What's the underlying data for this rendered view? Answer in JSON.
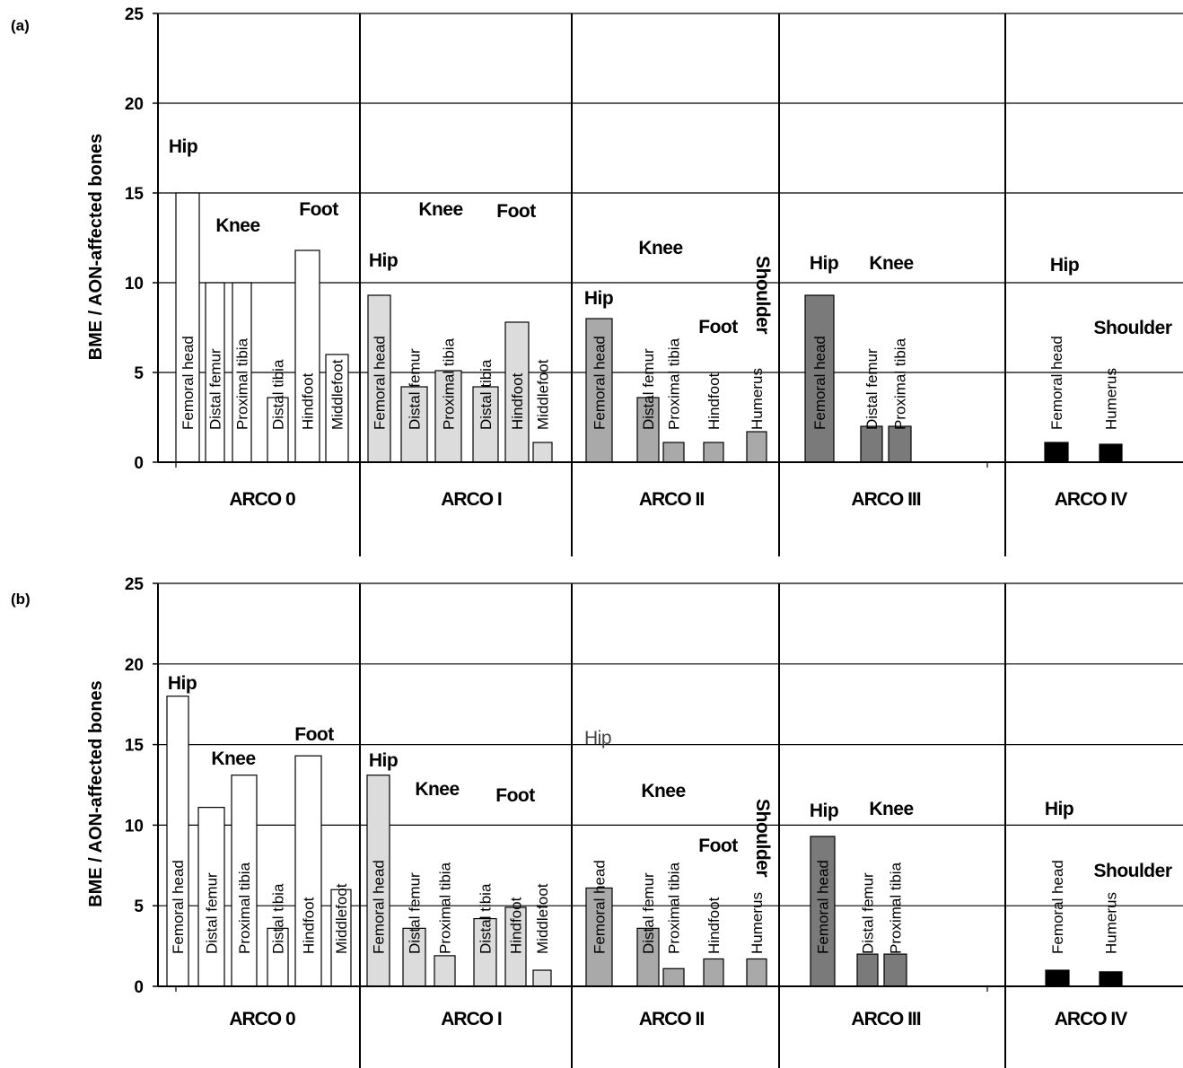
{
  "chart_data": [
    {
      "type": "bar",
      "panel_label": "(a)",
      "ylabel": "BME / AON-affected bones",
      "ylim": [
        0,
        25
      ],
      "yticks": [
        "0",
        "5",
        "10",
        "15",
        "20",
        "25"
      ],
      "grid": true,
      "categories": [
        "ARCO 0",
        "ARCO I",
        "ARCO II",
        "ARCO III",
        "ARCO IV"
      ],
      "groups": [
        {
          "stage": "ARCO 0",
          "label": "Hip"
        },
        {
          "stage": "ARCO 0",
          "label": "Knee"
        },
        {
          "stage": "ARCO 0",
          "label": "Foot"
        },
        {
          "stage": "ARCO I",
          "label": "Hip"
        },
        {
          "stage": "ARCO I",
          "label": "Knee"
        },
        {
          "stage": "ARCO I",
          "label": "Foot"
        },
        {
          "stage": "ARCO II",
          "label": "Hip"
        },
        {
          "stage": "ARCO II",
          "label": "Knee"
        },
        {
          "stage": "ARCO II",
          "label": "Foot"
        },
        {
          "stage": "ARCO II",
          "label": "Shoulder",
          "vertical": true
        },
        {
          "stage": "ARCO III",
          "label": "Hip"
        },
        {
          "stage": "ARCO III",
          "label": "Knee"
        },
        {
          "stage": "ARCO IV",
          "label": "Hip"
        },
        {
          "stage": "ARCO IV",
          "label": "Shoulder"
        }
      ],
      "bars": [
        {
          "stage": "ARCO 0",
          "label": "Femoral head",
          "value": 15
        },
        {
          "stage": "ARCO 0",
          "label": "Distal femur",
          "value": 10
        },
        {
          "stage": "ARCO 0",
          "label": "Proximal tibia",
          "value": 10
        },
        {
          "stage": "ARCO 0",
          "label": "Distal tibia",
          "value": 3.6
        },
        {
          "stage": "ARCO 0",
          "label": "Hindfoot",
          "value": 11.8
        },
        {
          "stage": "ARCO 0",
          "label": "Middlefoot",
          "value": 6
        },
        {
          "stage": "ARCO I",
          "label": "Femoral head",
          "value": 9.3
        },
        {
          "stage": "ARCO I",
          "label": "Distal femur",
          "value": 4.2
        },
        {
          "stage": "ARCO I",
          "label": "Proximal tibia",
          "value": 5.1
        },
        {
          "stage": "ARCO I",
          "label": "Distal tibia",
          "value": 4.2
        },
        {
          "stage": "ARCO I",
          "label": "Hindfoot",
          "value": 7.8
        },
        {
          "stage": "ARCO I",
          "label": "Middlefoot",
          "value": 1.1
        },
        {
          "stage": "ARCO II",
          "label": "Femoral head",
          "value": 8
        },
        {
          "stage": "ARCO II",
          "label": "Distal femur",
          "value": 3.6
        },
        {
          "stage": "ARCO II",
          "label": "Proximal tibia",
          "value": 1.1
        },
        {
          "stage": "ARCO II",
          "label": "Hindfoot",
          "value": 1.1
        },
        {
          "stage": "ARCO II",
          "label": "Humerus",
          "value": 1.7
        },
        {
          "stage": "ARCO III",
          "label": "Femoral head",
          "value": 9.3
        },
        {
          "stage": "ARCO III",
          "label": "Distal femur",
          "value": 2
        },
        {
          "stage": "ARCO III",
          "label": "Proximal tibia",
          "value": 2
        },
        {
          "stage": "ARCO IV",
          "label": "Femoral head",
          "value": 1.1
        },
        {
          "stage": "ARCO IV",
          "label": "Humerus",
          "value": 1
        }
      ],
      "colors": {
        "ARCO 0": "#ffffff",
        "ARCO I": "#dcdcdc",
        "ARCO II": "#a9a9a9",
        "ARCO III": "#7a7a7a",
        "ARCO IV": "#000000"
      }
    },
    {
      "type": "bar",
      "panel_label": "(b)",
      "ylabel": "BME / AON-affected bones",
      "ylim": [
        0,
        25
      ],
      "yticks": [
        "0",
        "5",
        "10",
        "15",
        "20",
        "25"
      ],
      "grid": true,
      "categories": [
        "ARCO 0",
        "ARCO I",
        "ARCO II",
        "ARCO III",
        "ARCO IV"
      ],
      "groups": [
        {
          "stage": "ARCO 0",
          "label": "Hip"
        },
        {
          "stage": "ARCO 0",
          "label": "Knee"
        },
        {
          "stage": "ARCO 0",
          "label": "Foot"
        },
        {
          "stage": "ARCO I",
          "label": "Hip"
        },
        {
          "stage": "ARCO I",
          "label": "Knee"
        },
        {
          "stage": "ARCO I",
          "label": "Foot"
        },
        {
          "stage": "ARCO II",
          "label": "Hip",
          "plain": true
        },
        {
          "stage": "ARCO II",
          "label": "Knee"
        },
        {
          "stage": "ARCO II",
          "label": "Foot"
        },
        {
          "stage": "ARCO II",
          "label": "Shoulder",
          "vertical": true
        },
        {
          "stage": "ARCO III",
          "label": "Hip"
        },
        {
          "stage": "ARCO III",
          "label": "Knee"
        },
        {
          "stage": "ARCO IV",
          "label": "Hip"
        },
        {
          "stage": "ARCO IV",
          "label": "Shoulder"
        }
      ],
      "bars": [
        {
          "stage": "ARCO 0",
          "label": "Femoral head",
          "value": 18
        },
        {
          "stage": "ARCO 0",
          "label": "Distal femur",
          "value": 11.1
        },
        {
          "stage": "ARCO 0",
          "label": "Proximal tibia",
          "value": 13.1
        },
        {
          "stage": "ARCO 0",
          "label": "Distal tibia",
          "value": 3.6
        },
        {
          "stage": "ARCO 0",
          "label": "Hindfoot",
          "value": 14.3
        },
        {
          "stage": "ARCO 0",
          "label": "Middlefoot",
          "value": 6
        },
        {
          "stage": "ARCO I",
          "label": "Femoral head",
          "value": 13.1
        },
        {
          "stage": "ARCO I",
          "label": "Distal femur",
          "value": 3.6
        },
        {
          "stage": "ARCO I",
          "label": "Proximal tibia",
          "value": 1.9
        },
        {
          "stage": "ARCO I",
          "label": "Distal tibia",
          "value": 4.2
        },
        {
          "stage": "ARCO I",
          "label": "Hindfoot",
          "value": 4.9
        },
        {
          "stage": "ARCO I",
          "label": "Middlefoot",
          "value": 1
        },
        {
          "stage": "ARCO II",
          "label": "Femoral head",
          "value": 6.1
        },
        {
          "stage": "ARCO II",
          "label": "Distal femur",
          "value": 3.6
        },
        {
          "stage": "ARCO II",
          "label": "Proximal tibia",
          "value": 1.1
        },
        {
          "stage": "ARCO II",
          "label": "Hindfoot",
          "value": 1.7
        },
        {
          "stage": "ARCO II",
          "label": "Humerus",
          "value": 1.7
        },
        {
          "stage": "ARCO III",
          "label": "Femoral head",
          "value": 9.3
        },
        {
          "stage": "ARCO III",
          "label": "Distal femur",
          "value": 2
        },
        {
          "stage": "ARCO III",
          "label": "Proximal tibia",
          "value": 2
        },
        {
          "stage": "ARCO IV",
          "label": "Femoral head",
          "value": 1
        },
        {
          "stage": "ARCO IV",
          "label": "Humerus",
          "value": 0.9
        }
      ],
      "colors": {
        "ARCO 0": "#ffffff",
        "ARCO I": "#dcdcdc",
        "ARCO II": "#a9a9a9",
        "ARCO III": "#7a7a7a",
        "ARCO IV": "#000000"
      }
    }
  ]
}
